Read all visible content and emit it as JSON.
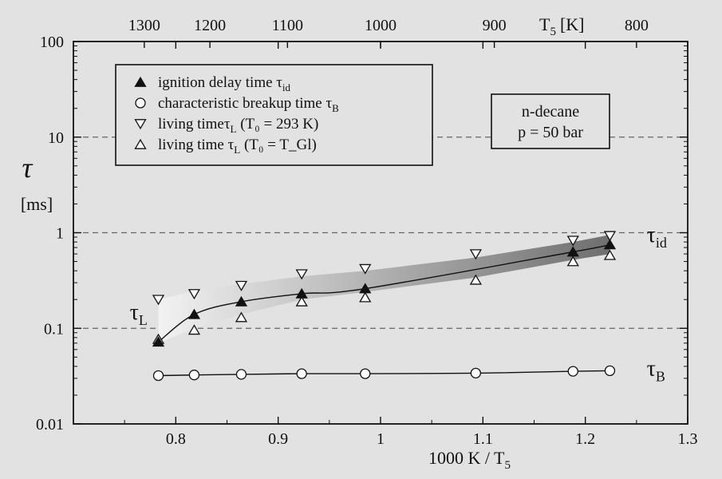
{
  "chart_data": {
    "type": "scatter",
    "xlabel_main": "1000 K / T",
    "xlabel_sub": "5",
    "ylabel_symbol": "τ",
    "ylabel_unit": "[ms]",
    "xlim": [
      0.7,
      1.3
    ],
    "ylim": [
      0.01,
      100
    ],
    "yscale": "log",
    "x_ticks": [
      0.8,
      0.9,
      1.0,
      1.1,
      1.2,
      1.3
    ],
    "x_tick_labels": [
      "0.8",
      "0.9",
      "1",
      "1.1",
      "1.2",
      "1.3"
    ],
    "y_ticks": [
      0.01,
      0.1,
      1,
      10,
      100
    ],
    "y_tick_labels": [
      "0.01",
      "0.1",
      "1",
      "10",
      "100"
    ],
    "top_axis": {
      "ticks": [
        1300,
        1200,
        1100,
        1000,
        900,
        800
      ],
      "tick_labels": [
        "1300",
        "1200",
        "1100",
        "1000",
        "900",
        "800"
      ],
      "label_main": "T",
      "label_sub": "5",
      "label_unit": "[K]"
    },
    "grid": "dashed horizontal at 0.1, 1, 10",
    "legend": {
      "placement": "top-left",
      "entries": [
        {
          "symbol": "▲",
          "text": "ignition delay time τ",
          "sub": "id",
          "suffix": ""
        },
        {
          "symbol": "○",
          "text": "characteristic breakup time τ",
          "sub": "B",
          "suffix": ""
        },
        {
          "symbol": "▽",
          "text": "living timeτ",
          "sub": "L",
          "suffix": " (T₀ = 293 K)"
        },
        {
          "symbol": "△",
          "text": "living time τ",
          "sub": "L",
          "suffix": " (T₀ = T_Gl)"
        }
      ]
    },
    "annotation_box": {
      "line1": "n-decane",
      "line2": "p = 50 bar"
    },
    "curve_labels": [
      {
        "main": "τ",
        "sub": "id",
        "x": 1.26,
        "y": 0.9
      },
      {
        "main": "τ",
        "sub": "L",
        "x": 0.755,
        "y": 0.14
      },
      {
        "main": "τ",
        "sub": "B",
        "x": 1.26,
        "y": 0.036
      }
    ],
    "series": [
      {
        "name": "ignition delay time τid",
        "marker": "filled-triangle-up",
        "x": [
          0.783,
          0.818,
          0.864,
          0.923,
          0.985,
          1.188,
          1.224
        ],
        "y": [
          0.072,
          0.14,
          0.19,
          0.23,
          0.26,
          0.63,
          0.75
        ]
      },
      {
        "name": "characteristic breakup time τB",
        "marker": "open-circle",
        "x": [
          0.783,
          0.818,
          0.864,
          0.923,
          0.985,
          1.093,
          1.188,
          1.224
        ],
        "y": [
          0.032,
          0.0325,
          0.033,
          0.0335,
          0.0335,
          0.034,
          0.0355,
          0.036
        ]
      },
      {
        "name": "living time τL (T0 = 293 K)",
        "marker": "open-triangle-down",
        "x": [
          0.783,
          0.818,
          0.864,
          0.923,
          0.985,
          1.093,
          1.188,
          1.224
        ],
        "y": [
          0.2,
          0.23,
          0.28,
          0.37,
          0.42,
          0.6,
          0.83,
          0.93
        ]
      },
      {
        "name": "living time τL (T0 = TGl)",
        "marker": "open-triangle-up",
        "x": [
          0.783,
          0.818,
          0.864,
          0.923,
          0.985,
          1.093,
          1.188,
          1.224
        ],
        "y": [
          0.077,
          0.096,
          0.13,
          0.19,
          0.21,
          0.32,
          0.5,
          0.58
        ]
      }
    ],
    "shaded_band": {
      "upper_x": [
        0.783,
        0.818,
        0.864,
        0.923,
        0.985,
        1.093,
        1.188,
        1.224
      ],
      "upper_y": [
        0.2,
        0.245,
        0.29,
        0.35,
        0.4,
        0.55,
        0.8,
        0.95
      ],
      "lower_x": [
        0.783,
        0.818,
        0.864,
        0.923,
        0.985,
        1.093,
        1.188,
        1.224
      ],
      "lower_y": [
        0.07,
        0.1,
        0.14,
        0.2,
        0.24,
        0.34,
        0.52,
        0.6
      ]
    },
    "colors": {
      "background": "#e2e2e2",
      "band_light": "#efefef",
      "band_dark": "#7a7a7a",
      "ink": "#111111",
      "grid": "#666666"
    }
  }
}
